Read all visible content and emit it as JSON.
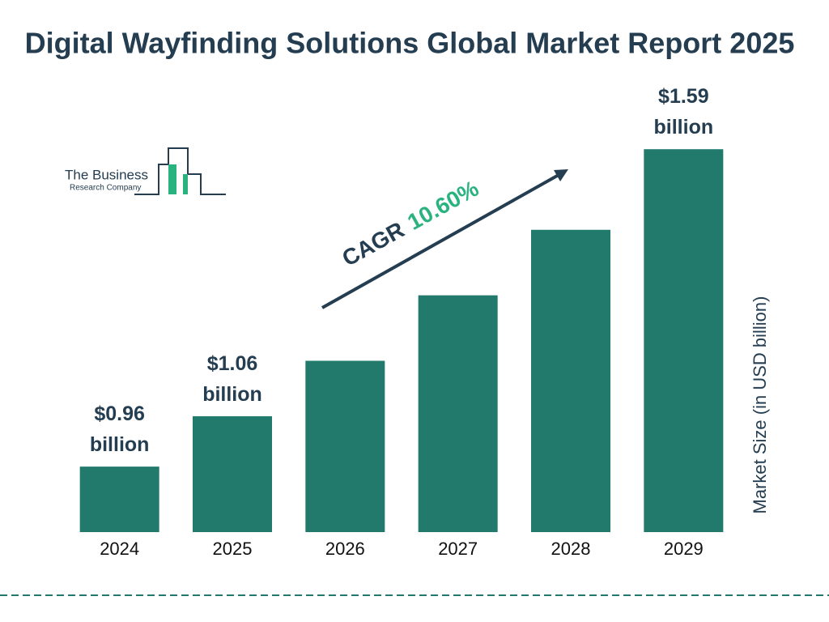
{
  "chart_data": {
    "type": "bar",
    "title": "Digital Wayfinding Solutions Global Market Report 2025",
    "categories": [
      "2024",
      "2025",
      "2026",
      "2027",
      "2028",
      "2029"
    ],
    "values": [
      0.96,
      1.06,
      1.17,
      1.3,
      1.43,
      1.59
    ],
    "value_labels": [
      "$0.96 billion",
      "$1.06 billion",
      null,
      null,
      null,
      "$1.59 billion"
    ],
    "color": "#217a6b",
    "ylim": [
      0.83,
      1.6
    ],
    "y_axis_label": "Market Size (in USD billion)",
    "cagr_label": "CAGR",
    "cagr_value": "10.60%"
  },
  "logo": {
    "name": "The Business",
    "subtitle": "Research Company"
  }
}
